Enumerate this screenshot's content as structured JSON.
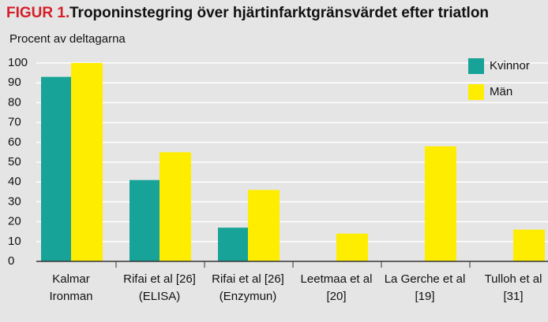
{
  "chart_data": {
    "type": "bar",
    "figure_label": "FIGUR 1.",
    "title": "Troponinstegring över hjärtinfarktgränsvärdet efter triatlon",
    "y_label": "Procent av deltagarna",
    "categories": [
      [
        "Kalmar",
        "Ironman"
      ],
      [
        "Rifai et al [26]",
        "(ELISA)"
      ],
      [
        "Rifai et al [26]",
        "(Enzymun)"
      ],
      [
        "Leetmaa et al",
        "[20]"
      ],
      [
        "La Gerche et al",
        "[19]"
      ],
      [
        "Tulloh et al",
        "[31]"
      ]
    ],
    "series": [
      {
        "name": "Kvinnor",
        "color": "#17a398",
        "values": [
          93,
          41,
          17,
          null,
          null,
          null
        ]
      },
      {
        "name": "Män",
        "color": "#ffed00",
        "values": [
          100,
          55,
          36,
          14,
          58,
          16
        ]
      }
    ],
    "ylim": [
      0,
      100
    ],
    "yticks": [
      0,
      10,
      20,
      30,
      40,
      50,
      60,
      70,
      80,
      90,
      100
    ],
    "grid": true,
    "legend": "upper right"
  }
}
